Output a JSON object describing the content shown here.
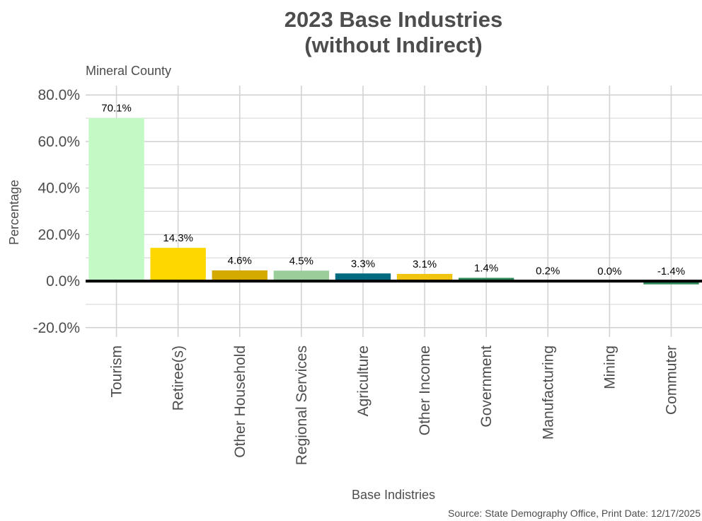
{
  "chart_data": {
    "type": "bar",
    "title_lines": [
      "2023 Base Industries",
      "(without Indirect)"
    ],
    "subtitle": "Mineral County",
    "xlabel": "Base Indistries",
    "ylabel": "Percentage",
    "caption": "Source: State Demography Office, Print Date: 12/17/2025",
    "categories": [
      "Tourism",
      "Retiree(s)",
      "Other Household",
      "Regional Services",
      "Agriculture",
      "Other Income",
      "Government",
      "Manufacturing",
      "Mining",
      "Commuter"
    ],
    "values": [
      70.1,
      14.3,
      4.6,
      4.5,
      3.3,
      3.1,
      1.4,
      0.2,
      0.0,
      -1.4
    ],
    "value_labels": [
      "70.1%",
      "14.3%",
      "4.6%",
      "4.5%",
      "3.3%",
      "3.1%",
      "1.4%",
      "0.2%",
      "0.0%",
      "-1.4%"
    ],
    "colors": [
      "#c2f9c4",
      "#ffd700",
      "#d4aa00",
      "#9acd9a",
      "#006a7f",
      "#f1c40f",
      "#2e8b57",
      "#2e8b57",
      "#2e8b57",
      "#2e8b57"
    ],
    "yticks": [
      -20,
      0,
      20,
      40,
      60,
      80
    ],
    "ytick_labels": [
      "-20.0%",
      "0.0%",
      "20.0%",
      "40.0%",
      "60.0%",
      "80.0%"
    ],
    "ylim": [
      -24,
      84
    ],
    "grid": true,
    "legend": "none"
  }
}
